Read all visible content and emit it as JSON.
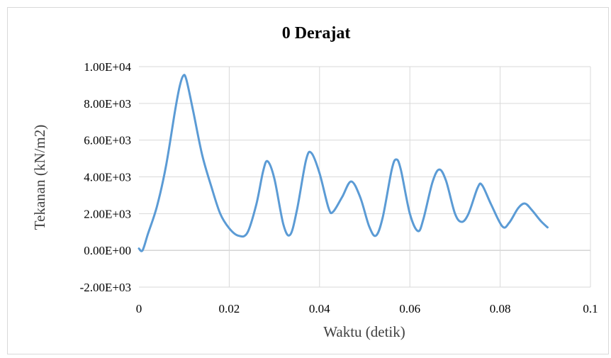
{
  "chart_data": {
    "type": "line",
    "title": "0 Derajat",
    "xlabel": "Waktu (detik)",
    "ylabel": "Tekanan  (kN/m2)",
    "xlim": [
      0,
      0.1
    ],
    "ylim": [
      -2000,
      10000
    ],
    "x_ticks": [
      0,
      0.02,
      0.04,
      0.06,
      0.08,
      0.1
    ],
    "x_tick_labels": [
      "0",
      "0.02",
      "0.04",
      "0.06",
      "0.08",
      "0.1"
    ],
    "y_ticks": [
      -2000,
      0,
      2000,
      4000,
      6000,
      8000,
      10000
    ],
    "y_tick_labels": [
      "-2.00E+03",
      "0.00E+00",
      "2.00E+03",
      "4.00E+03",
      "6.00E+03",
      "8.00E+03",
      "1.00E+04"
    ],
    "grid": true,
    "legend": "none",
    "series": [
      {
        "color": "#5b9bd5",
        "x": [
          0,
          0.0008,
          0.002,
          0.004,
          0.006,
          0.008,
          0.009,
          0.0098,
          0.0105,
          0.012,
          0.014,
          0.016,
          0.018,
          0.02,
          0.022,
          0.024,
          0.026,
          0.0275,
          0.0285,
          0.03,
          0.032,
          0.0335,
          0.035,
          0.037,
          0.0382,
          0.04,
          0.042,
          0.043,
          0.045,
          0.047,
          0.049,
          0.051,
          0.0525,
          0.054,
          0.056,
          0.057,
          0.058,
          0.06,
          0.0618,
          0.063,
          0.065,
          0.0665,
          0.068,
          0.07,
          0.0715,
          0.073,
          0.075,
          0.076,
          0.078,
          0.0805,
          0.082,
          0.084,
          0.0855,
          0.087,
          0.089,
          0.0905
        ],
        "y": [
          100,
          0,
          900,
          2400,
          4600,
          7600,
          8900,
          9500,
          9300,
          7600,
          5200,
          3500,
          2000,
          1200,
          800,
          950,
          2500,
          4300,
          4850,
          3900,
          1400,
          850,
          2200,
          4900,
          5300,
          4200,
          2300,
          2100,
          2900,
          3750,
          2900,
          1300,
          800,
          1800,
          4400,
          4950,
          4400,
          2000,
          1050,
          1700,
          3700,
          4400,
          3800,
          2000,
          1550,
          2000,
          3400,
          3550,
          2500,
          1300,
          1500,
          2300,
          2550,
          2200,
          1600,
          1250
        ]
      }
    ]
  }
}
